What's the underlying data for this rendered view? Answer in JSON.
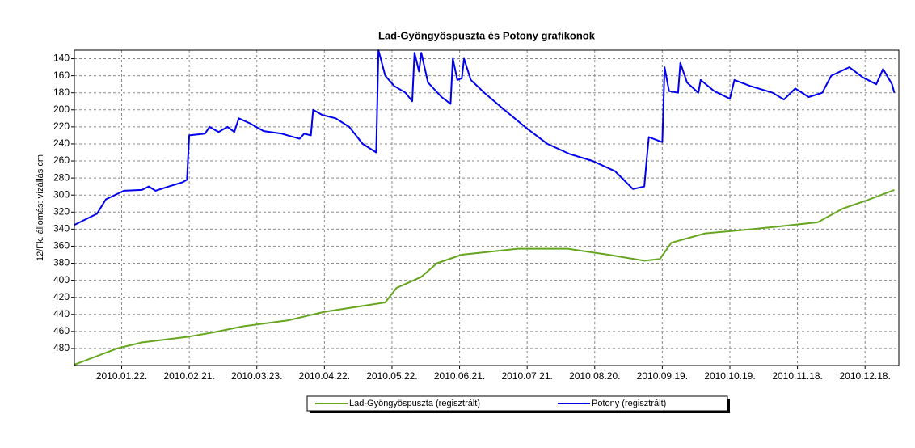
{
  "chart_data": {
    "type": "line",
    "title": "Lad-Gyöngyöspuszta és Potony grafikonok",
    "ylabel": "12/Fk. állomás: vízállás cm",
    "xlim": [
      "2010-01-01",
      "2011-01-02"
    ],
    "xticks": [
      {
        "value": "2010-01-22",
        "label": "2010.01.22."
      },
      {
        "value": "2010-02-21",
        "label": "2010.02.21."
      },
      {
        "value": "2010-03-23",
        "label": "2010.03.23."
      },
      {
        "value": "2010-04-22",
        "label": "2010.04.22."
      },
      {
        "value": "2010-05-22",
        "label": "2010.05.22."
      },
      {
        "value": "2010-06-21",
        "label": "2010.06.21."
      },
      {
        "value": "2010-07-21",
        "label": "2010.07.21."
      },
      {
        "value": "2010-08-20",
        "label": "2010.08.20."
      },
      {
        "value": "2010-09-19",
        "label": "2010.09.19."
      },
      {
        "value": "2010-10-19",
        "label": "2010.10.19."
      },
      {
        "value": "2010-11-18",
        "label": "2010.11.18."
      },
      {
        "value": "2010-12-18",
        "label": "2010.12.18."
      }
    ],
    "ylim": [
      130,
      500
    ],
    "y_inverted": true,
    "yticks": [
      140,
      160,
      180,
      200,
      220,
      240,
      260,
      280,
      300,
      320,
      340,
      360,
      380,
      400,
      420,
      440,
      460,
      480
    ],
    "grid": true,
    "legend": "bottom",
    "series": [
      {
        "name": "Lad-Gyöngyöspuszta (regisztrált)",
        "color": "#66a61e",
        "x": [
          "2010-01-01",
          "2010-01-09",
          "2010-01-20",
          "2010-01-31",
          "2010-02-21",
          "2010-03-04",
          "2010-03-17",
          "2010-04-06",
          "2010-04-22",
          "2010-05-19",
          "2010-05-24",
          "2010-06-04",
          "2010-06-11",
          "2010-06-22",
          "2010-07-17",
          "2010-08-08",
          "2010-08-26",
          "2010-09-11",
          "2010-09-18",
          "2010-09-23",
          "2010-10-08",
          "2010-10-29",
          "2010-11-09",
          "2010-11-27",
          "2010-12-08",
          "2010-12-19",
          "2010-12-31"
        ],
        "values": [
          499,
          491,
          480,
          473,
          466,
          461,
          454,
          447,
          437,
          426,
          409,
          396,
          380,
          370,
          363,
          363,
          370,
          377,
          375,
          356,
          345,
          340,
          337,
          332,
          316,
          306,
          294
        ]
      },
      {
        "name": "Potony (regisztrált)",
        "color": "#0000ee",
        "x": [
          "2010-01-01",
          "2010-01-11",
          "2010-01-15",
          "2010-01-23",
          "2010-01-31",
          "2010-02-03",
          "2010-02-06",
          "2010-02-12",
          "2010-02-18",
          "2010-02-20",
          "2010-02-21",
          "2010-02-28",
          "2010-03-02",
          "2010-03-06",
          "2010-03-10",
          "2010-03-13",
          "2010-03-15",
          "2010-03-20",
          "2010-03-26",
          "2010-04-03",
          "2010-04-11",
          "2010-04-13",
          "2010-04-16",
          "2010-04-17",
          "2010-04-21",
          "2010-04-27",
          "2010-05-03",
          "2010-05-09",
          "2010-05-15",
          "2010-05-16",
          "2010-05-19",
          "2010-05-23",
          "2010-05-28",
          "2010-05-31",
          "2010-06-01",
          "2010-06-03",
          "2010-06-04",
          "2010-06-07",
          "2010-06-13",
          "2010-06-17",
          "2010-06-18",
          "2010-06-20",
          "2010-06-22",
          "2010-06-23",
          "2010-06-26",
          "2010-07-02",
          "2010-07-10",
          "2010-07-20",
          "2010-07-30",
          "2010-08-09",
          "2010-08-19",
          "2010-08-29",
          "2010-09-06",
          "2010-09-11",
          "2010-09-12",
          "2010-09-13",
          "2010-09-19",
          "2010-09-20",
          "2010-09-22",
          "2010-09-26",
          "2010-09-27",
          "2010-09-30",
          "2010-10-05",
          "2010-10-06",
          "2010-10-12",
          "2010-10-19",
          "2010-10-21",
          "2010-10-28",
          "2010-11-07",
          "2010-11-12",
          "2010-11-17",
          "2010-11-23",
          "2010-11-29",
          "2010-12-03",
          "2010-12-07",
          "2010-12-11",
          "2010-12-17",
          "2010-12-23",
          "2010-12-26",
          "2010-12-30",
          "2010-12-31"
        ],
        "values": [
          335,
          322,
          305,
          295,
          294,
          290,
          295,
          290,
          285,
          282,
          230,
          228,
          220,
          226,
          220,
          226,
          210,
          216,
          225,
          228,
          234,
          228,
          230,
          200,
          206,
          210,
          220,
          240,
          250,
          130,
          160,
          172,
          180,
          190,
          133,
          155,
          133,
          168,
          185,
          193,
          140,
          165,
          163,
          140,
          165,
          180,
          198,
          220,
          240,
          252,
          260,
          272,
          293,
          290,
          260,
          232,
          238,
          150,
          178,
          180,
          145,
          168,
          180,
          165,
          178,
          187,
          165,
          172,
          180,
          188,
          175,
          185,
          180,
          160,
          155,
          150,
          162,
          170,
          152,
          170,
          180
        ]
      }
    ]
  }
}
